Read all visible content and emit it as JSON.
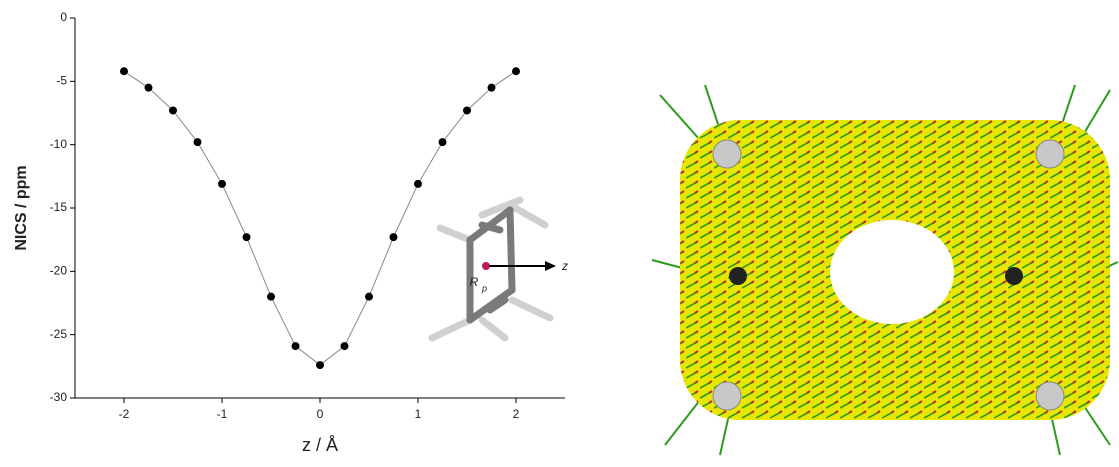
{
  "chart_data": {
    "type": "line",
    "x": [
      -2,
      -1.75,
      -1.5,
      -1.25,
      -1,
      -0.75,
      -0.5,
      -0.25,
      0,
      0.25,
      0.5,
      0.75,
      1,
      1.25,
      1.5,
      1.75,
      2
    ],
    "y": [
      -4.2,
      -5.5,
      -7.3,
      -9.8,
      -13.1,
      -17.3,
      -22.0,
      -25.9,
      -27.4,
      -25.9,
      -22.0,
      -17.3,
      -13.1,
      -9.8,
      -7.3,
      -5.5,
      -4.2
    ],
    "line_color": "#888888",
    "marker_color": "#000000",
    "xlabel": "z / Å",
    "ylabel": "NICS / ppm",
    "xlim": [
      -2.5,
      2.5
    ],
    "xticks": [
      -2,
      -1,
      0,
      1,
      2
    ],
    "ylim": [
      -30,
      0
    ],
    "yticks": [
      0,
      -5,
      -10,
      -15,
      -20,
      -25,
      -30
    ],
    "annotations": [
      "R",
      "p",
      "z"
    ]
  }
}
